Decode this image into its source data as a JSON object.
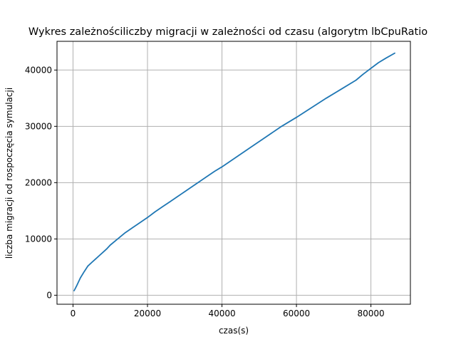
{
  "chart_data": {
    "type": "line",
    "title": "Wykres zależnościliczby migracji w zależności od czasu (algorytm lbCpuRatio",
    "xlabel": "czas(s)",
    "ylabel": "liczba migracji od rospoczęcia symulacji",
    "xlim": [
      -4300,
      90600
    ],
    "ylim": [
      -1600,
      45100
    ],
    "xticks": [
      0,
      20000,
      40000,
      60000,
      80000
    ],
    "yticks": [
      0,
      10000,
      20000,
      30000,
      40000
    ],
    "xtick_labels": [
      "0",
      "20000",
      "40000",
      "60000",
      "80000"
    ],
    "ytick_labels": [
      "0",
      "10000",
      "20000",
      "30000",
      "40000"
    ],
    "grid": true,
    "series": [
      {
        "color": "#1f77b4",
        "x": [
          300,
          1000,
          2000,
          3000,
          4000,
          5000,
          6000,
          7000,
          8000,
          9000,
          10000,
          12000,
          14000,
          16000,
          18000,
          20000,
          22000,
          24000,
          26000,
          28000,
          30000,
          32000,
          34000,
          36000,
          38000,
          40000,
          44000,
          48000,
          52000,
          56000,
          60000,
          64000,
          68000,
          72000,
          76000,
          78000,
          80000,
          82000,
          84000,
          86400
        ],
        "values": [
          800,
          1700,
          3100,
          4200,
          5200,
          5800,
          6400,
          7000,
          7600,
          8200,
          8900,
          10000,
          11100,
          12000,
          12900,
          13800,
          14800,
          15700,
          16600,
          17500,
          18400,
          19300,
          20200,
          21100,
          22000,
          22800,
          24600,
          26400,
          28200,
          30000,
          31600,
          33300,
          35000,
          36600,
          38200,
          39300,
          40300,
          41300,
          42100,
          43000
        ]
      }
    ]
  }
}
